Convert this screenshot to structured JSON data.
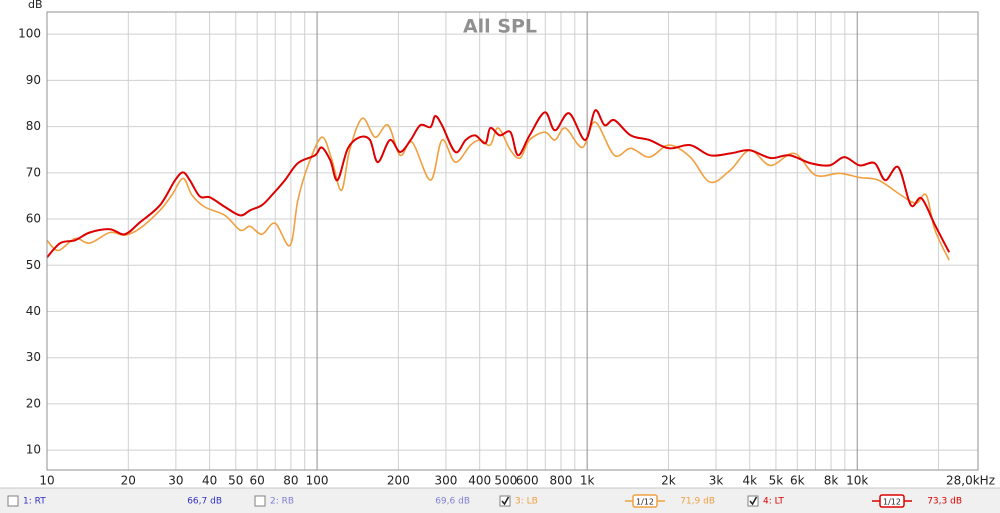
{
  "chart_data": {
    "type": "line",
    "title": "All SPL",
    "y_label": "dB",
    "log_x": true,
    "grid": true,
    "xlim": [
      10,
      28000
    ],
    "ylim": [
      5.7,
      104.8
    ],
    "xticks": [
      10,
      20,
      30,
      40,
      50,
      60,
      80,
      100,
      200,
      300,
      400,
      500,
      600,
      800,
      {
        "value": 1000,
        "label": "1k"
      },
      {
        "value": 2000,
        "label": "2k"
      },
      {
        "value": 3000,
        "label": "3k"
      },
      {
        "value": 4000,
        "label": "4k"
      },
      {
        "value": 5000,
        "label": "5k"
      },
      {
        "value": 6000,
        "label": "6k"
      },
      {
        "value": 8000,
        "label": "8k"
      },
      {
        "value": 10000,
        "label": "10k"
      },
      {
        "value": 28000,
        "label": "28,0kHz"
      }
    ],
    "x_minor_grid": [
      70,
      90,
      700,
      900,
      7000,
      9000,
      20000
    ],
    "yticks": [
      10,
      20,
      30,
      40,
      50,
      60,
      70,
      80,
      90,
      100
    ],
    "series": [
      {
        "name": "1: RT",
        "color": "#3030c8",
        "checked": false,
        "level": 66.7,
        "level_label": "66,7 dB"
      },
      {
        "name": "2: RB",
        "color": "#8080d8",
        "checked": false,
        "level": 69.6,
        "level_label": "69,6 dB"
      },
      {
        "name": "3: LB",
        "color": "#f0a040",
        "checked": true,
        "level": 71.9,
        "level_label": "71,9 dB",
        "smoothing": "1/12",
        "x": [
          10,
          11,
          12.7,
          14.4,
          17.1,
          19.4,
          22.1,
          26.2,
          29,
          31.9,
          34.4,
          38.4,
          45.6,
          51.9,
          56.5,
          62.5,
          69.9,
          79.4,
          84.9,
          92.6,
          104,
          113,
          123,
          132,
          147,
          164,
          183,
          203,
          225,
          263,
          290,
          325,
          370,
          402,
          438,
          468,
          520,
          565,
          612,
          697,
          760,
          830,
          960,
          1070,
          1260,
          1450,
          1700,
          2010,
          2410,
          2850,
          3390,
          4000,
          4770,
          5850,
          7000,
          8600,
          10200,
          12000,
          14500,
          16500,
          18000,
          19400,
          21900
        ],
        "values": [
          55.4,
          53.2,
          55.8,
          54.8,
          57.1,
          56.5,
          58,
          61.9,
          65.2,
          68.8,
          65.2,
          62.6,
          60.8,
          57.6,
          58.4,
          56.7,
          59.1,
          54.3,
          64.1,
          71.6,
          77.7,
          73.2,
          66.2,
          74.9,
          81.8,
          77.7,
          80.3,
          73.8,
          76.6,
          68.4,
          77.1,
          72.3,
          76,
          77.1,
          76,
          79.7,
          74.9,
          73.2,
          77.1,
          78.8,
          77.1,
          79.7,
          75.5,
          81,
          73.8,
          75.3,
          73.4,
          76,
          73.4,
          68,
          70.6,
          74.9,
          71.6,
          74.2,
          69.5,
          69.9,
          69,
          68.4,
          65.2,
          63.4,
          65.2,
          57.6,
          51.1
        ]
      },
      {
        "name": "4: LT",
        "color": "#dd0000",
        "checked": true,
        "level": 73.3,
        "level_label": "73,3 dB",
        "smoothing": "1/12",
        "x": [
          10,
          11.2,
          12.7,
          14.4,
          17.1,
          19.4,
          22.1,
          26.2,
          29.8,
          31.9,
          33.8,
          36.8,
          40.1,
          45.6,
          51.9,
          56.5,
          62.5,
          68.1,
          76,
          84.9,
          98.3,
          104,
          112,
          119,
          130,
          144,
          157,
          168,
          186,
          203,
          222,
          241,
          263,
          274,
          290,
          325,
          355,
          385,
          420,
          438,
          475,
          520,
          555,
          612,
          697,
          760,
          857,
          983,
          1070,
          1160,
          1260,
          1450,
          1700,
          2010,
          2410,
          2850,
          3390,
          4000,
          4770,
          5600,
          6700,
          7900,
          8960,
          10200,
          11600,
          12700,
          14200,
          15800,
          17300,
          19400,
          21900
        ],
        "values": [
          51.7,
          54.8,
          55.4,
          57.1,
          57.8,
          56.7,
          59.3,
          63,
          68.4,
          70.1,
          68.4,
          64.9,
          64.7,
          62.6,
          60.8,
          61.9,
          63,
          65.2,
          68.4,
          72.1,
          73.8,
          75.5,
          72.7,
          68.4,
          75.3,
          77.7,
          77.1,
          72.3,
          77.1,
          74.5,
          77.1,
          80.3,
          79.9,
          82.3,
          80.3,
          74.5,
          77.1,
          78.1,
          76.4,
          79.7,
          78.1,
          78.8,
          73.8,
          78.1,
          83.1,
          79.2,
          82.9,
          77.1,
          83.5,
          80.3,
          81.4,
          78.1,
          77.1,
          75.3,
          76,
          73.8,
          74.2,
          74.9,
          73.2,
          73.8,
          72.1,
          71.6,
          73.4,
          71.6,
          72.1,
          68.4,
          71.2,
          63,
          64.5,
          58.7,
          52.8
        ]
      }
    ]
  }
}
